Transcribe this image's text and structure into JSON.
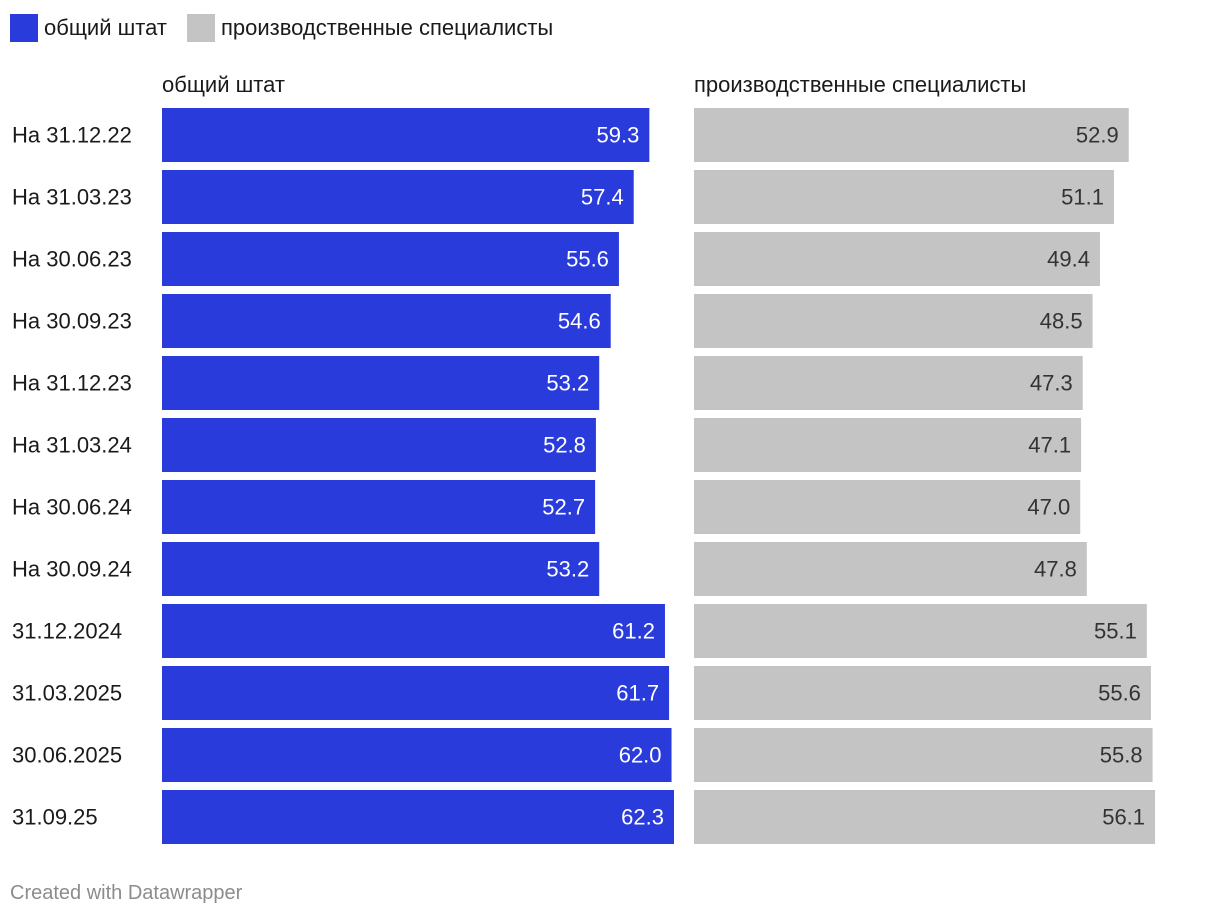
{
  "chart_data": {
    "type": "bar",
    "orientation": "horizontal",
    "layout": "small-multiples",
    "categories": [
      "На 31.12.22",
      "На 31.03.23",
      "На 30.06.23",
      "На 30.09.23",
      "На 31.12.23",
      "На 31.03.24",
      "На 30.06.24",
      "На 30.09.24",
      "31.12.2024",
      "31.03.2025",
      "30.06.2025",
      "31.09.25"
    ],
    "series": [
      {
        "name": "общий штат",
        "color": "#2a3bdc",
        "label_color": "#ffffff",
        "values": [
          59.3,
          57.4,
          55.6,
          54.6,
          53.2,
          52.8,
          52.7,
          53.2,
          61.2,
          61.7,
          62.0,
          62.3
        ]
      },
      {
        "name": "производственные специалисты",
        "color": "#c4c4c4",
        "label_color": "#333333",
        "values": [
          52.9,
          51.1,
          49.4,
          48.5,
          47.3,
          47.1,
          47.0,
          47.8,
          55.1,
          55.6,
          55.8,
          56.1
        ]
      }
    ],
    "xlim": [
      0,
      62.3
    ],
    "value_format": "0.0",
    "legend_position": "top-left",
    "grid": false
  },
  "footer": {
    "credit": "Created with Datawrapper"
  }
}
